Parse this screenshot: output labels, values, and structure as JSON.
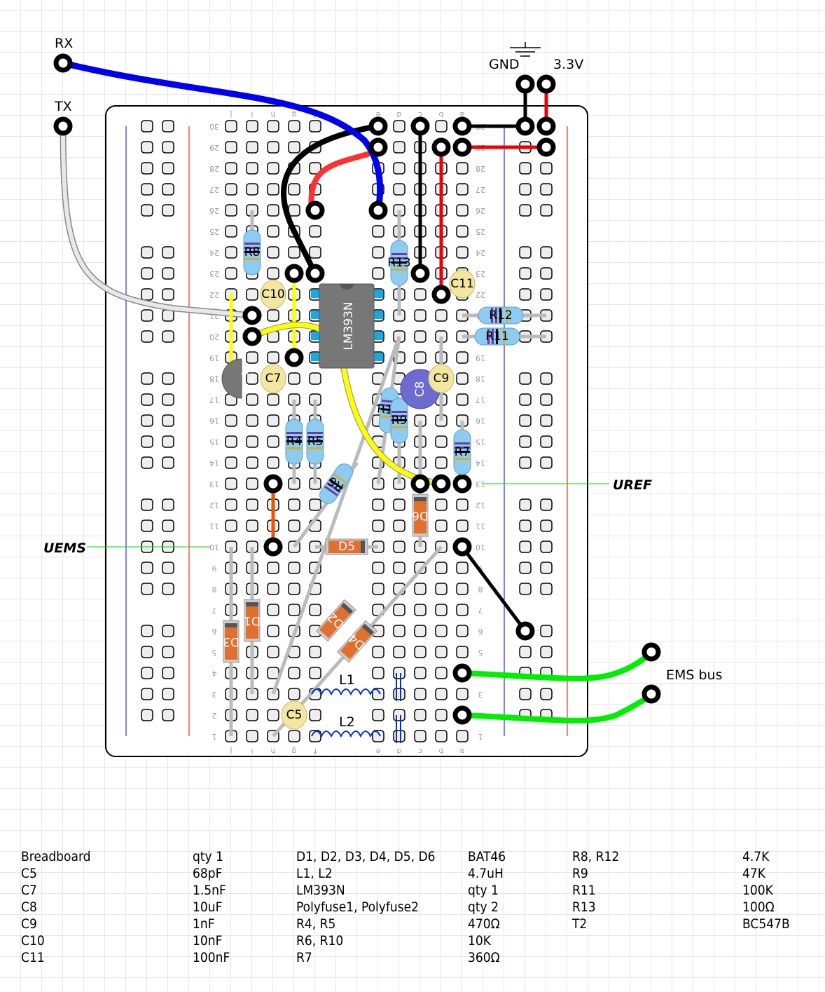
{
  "labels": {
    "rx": "RX",
    "tx": "TX",
    "gnd": "GND",
    "v33": "3.3V",
    "uems": "UEMS",
    "uref": "UREF",
    "ems_bus": "EMS bus"
  },
  "breadboard": {
    "columns_left": [
      "j",
      "i",
      "h",
      "g",
      "f"
    ],
    "columns_right": [
      "e",
      "d",
      "c",
      "b",
      "a"
    ],
    "rows": 30
  },
  "components": {
    "ic": "LM393N",
    "r4": "R4",
    "r5": "R5",
    "r6": "R6",
    "r7": "R7",
    "r8": "R8",
    "r9": "R9",
    "r10": "R10",
    "r11": "R11",
    "r12": "R12",
    "r13": "R13",
    "c5": "C5",
    "c7": "C7",
    "c8": "C8",
    "c9": "C9",
    "c10": "C10",
    "c11": "C11",
    "t2": "T2",
    "d1": "D1",
    "d2": "D2",
    "d3": "D3",
    "d4": "D4",
    "d5": "D5",
    "d6": "D6",
    "l1": "L1",
    "l2": "L2"
  },
  "colors": {
    "wire_blue": "#0000ee",
    "wire_red": "#ff2020",
    "wire_black": "#000000",
    "wire_yellow": "#ffff00",
    "wire_green": "#00ee00",
    "wire_orange": "#ee5500",
    "wire_white": "#dddddd",
    "resistor": "#8ecbf0",
    "capacitor": "#f2e6a0",
    "diode": "#e07030"
  },
  "bom": [
    [
      "Breadboard",
      "qty 1",
      "D1, D2, D3, D4, D5, D6",
      "BAT46",
      "R8, R12",
      "4.7K"
    ],
    [
      "C5",
      "68pF",
      "L1, L2",
      "4.7uH",
      "R9",
      "47K"
    ],
    [
      "C7",
      "1.5nF",
      "LM393N",
      "qty 1",
      "R11",
      "100K"
    ],
    [
      "C8",
      "10uF",
      "Polyfuse1, Polyfuse2",
      "qty 2",
      "R13",
      "100Ω"
    ],
    [
      "C9",
      "1nF",
      "R4, R5",
      "470Ω",
      "T2",
      "BC547B"
    ],
    [
      "C10",
      "10nF",
      "R6, R10",
      "10K",
      "",
      ""
    ],
    [
      "C11",
      "100nF",
      "R7",
      "360Ω",
      "",
      ""
    ]
  ]
}
